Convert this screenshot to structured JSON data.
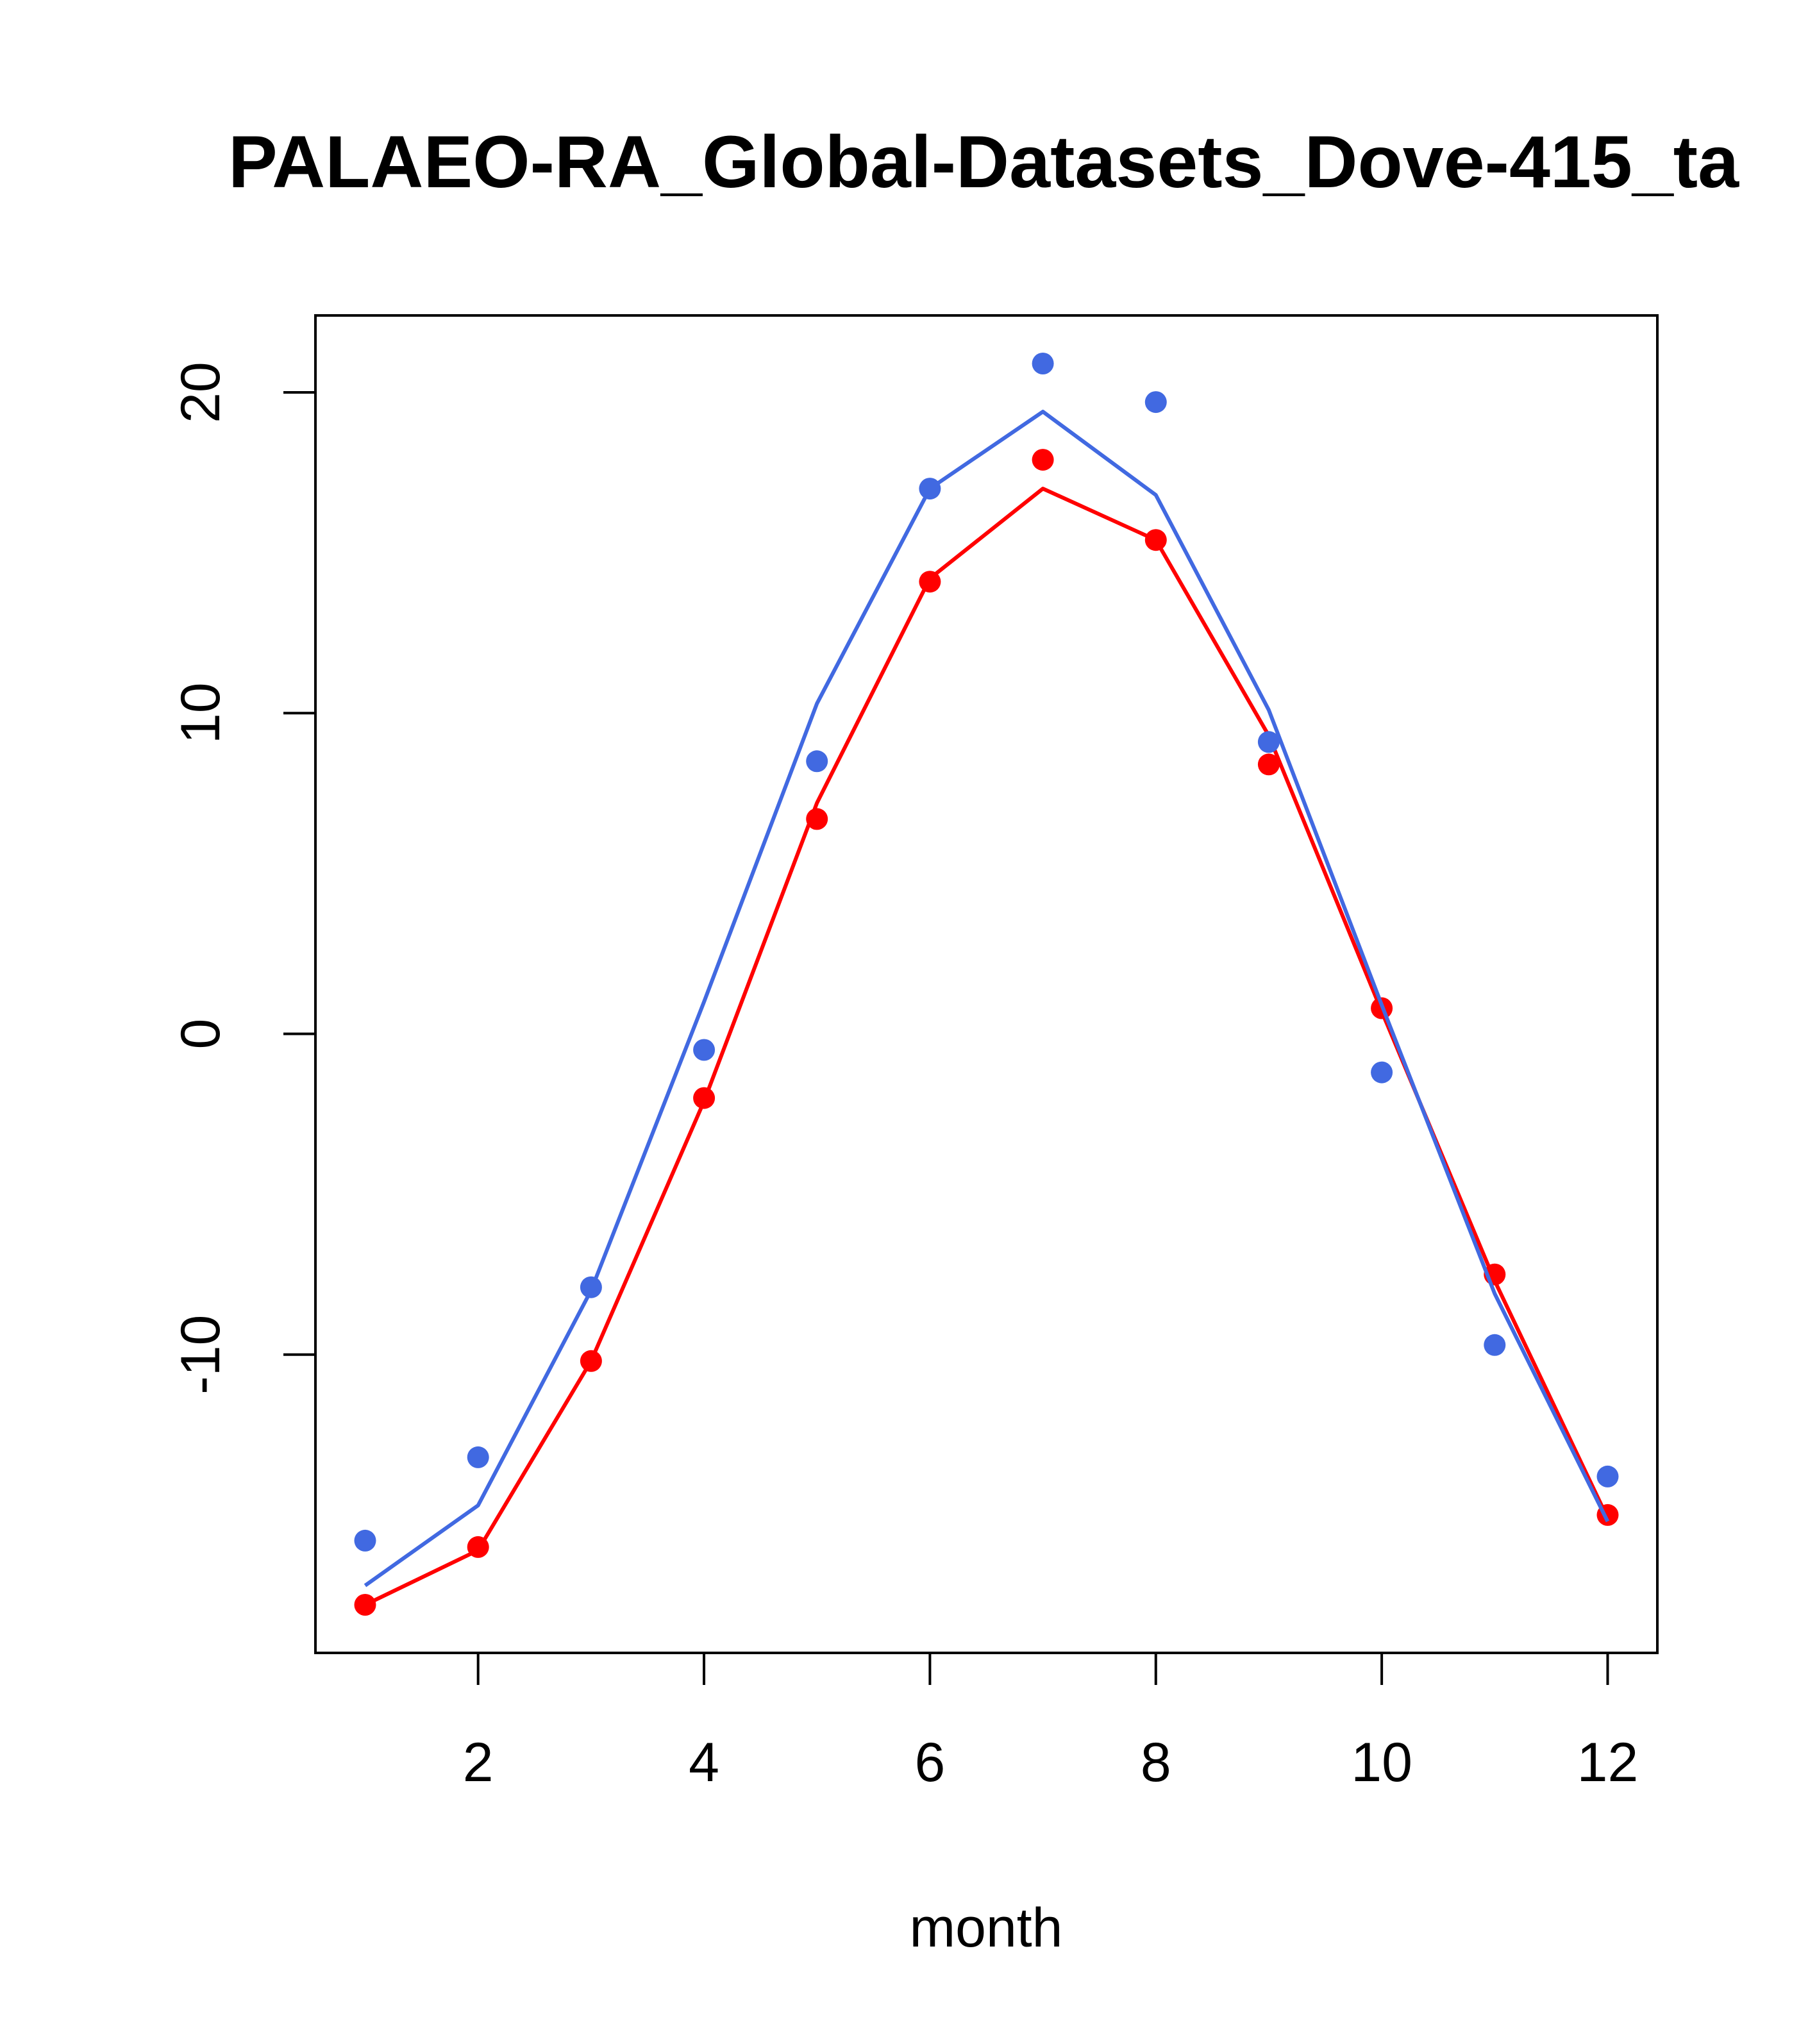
{
  "chart_data": {
    "type": "line",
    "title": "PALAEO-RA_Global-Datasets_Dove-415_ta",
    "xlabel": "month",
    "ylabel": "",
    "xlim": [
      0.56,
      12.44
    ],
    "ylim": [
      -19.3,
      22.4
    ],
    "x_ticks": [
      2,
      4,
      6,
      8,
      10,
      12
    ],
    "x_tick_labels": [
      "2",
      "4",
      "6",
      "8",
      "10",
      "12"
    ],
    "y_ticks": [
      -10,
      0,
      10,
      20
    ],
    "y_tick_labels": [
      "-10",
      "0",
      "10",
      "20"
    ],
    "grid": false,
    "x": [
      1,
      2,
      3,
      4,
      5,
      6,
      7,
      8,
      9,
      10,
      11,
      12
    ],
    "series": [
      {
        "color": "#ff0000",
        "line_values": [
          -17.8,
          -16.1,
          -10.2,
          -2.1,
          7.2,
          14.2,
          17.0,
          15.4,
          9.3,
          0.7,
          -7.7,
          -15.1
        ],
        "point_values": [
          -17.8,
          -16.0,
          -10.2,
          -2.0,
          6.7,
          14.1,
          17.9,
          15.4,
          8.4,
          0.8,
          -7.5,
          -15.0
        ]
      },
      {
        "color": "#4169e1",
        "line_values": [
          -17.2,
          -14.7,
          -8.0,
          1.0,
          10.3,
          17.0,
          19.4,
          16.8,
          10.1,
          0.9,
          -8.1,
          -15.2
        ],
        "point_values": [
          -15.8,
          -13.2,
          -7.9,
          -0.5,
          8.5,
          17.0,
          20.9,
          19.7,
          9.1,
          -1.2,
          -9.7,
          -13.8
        ]
      }
    ]
  }
}
